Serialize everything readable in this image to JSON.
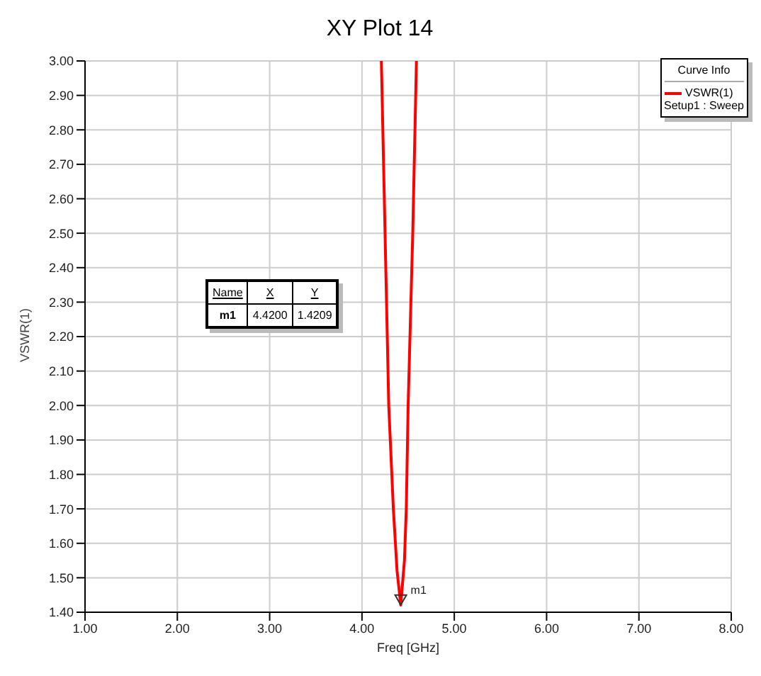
{
  "chart_data": {
    "type": "line",
    "title": "XY Plot 14",
    "xlabel": "Freq [GHz]",
    "ylabel": "VSWR(1)",
    "legend_title": "Curve Info",
    "x": [
      4.21,
      4.25,
      4.29,
      4.34,
      4.38,
      4.42,
      4.46,
      4.48,
      4.5,
      4.55,
      4.59
    ],
    "series": [
      {
        "name": "VSWR(1)",
        "color": "#ff0000",
        "values": [
          3.0,
          2.5,
          2.0,
          1.7,
          1.52,
          1.4209,
          1.55,
          1.7,
          2.0,
          2.5,
          3.0
        ]
      }
    ],
    "xlim": [
      1,
      8
    ],
    "ylim": [
      1.4,
      3.0
    ],
    "xticks": [
      {
        "value": 1,
        "label": "1.00"
      },
      {
        "value": 2,
        "label": "2.00"
      },
      {
        "value": 3,
        "label": "3.00"
      },
      {
        "value": 4,
        "label": "4.00"
      },
      {
        "value": 5,
        "label": "5.00"
      },
      {
        "value": 6,
        "label": "6.00"
      },
      {
        "value": 7,
        "label": "7.00"
      },
      {
        "value": 8,
        "label": "8.00"
      }
    ],
    "yticks": [
      {
        "value": 1.4,
        "label": "1.40"
      },
      {
        "value": 1.5,
        "label": "1.50"
      },
      {
        "value": 1.6,
        "label": "1.60"
      },
      {
        "value": 1.7,
        "label": "1.70"
      },
      {
        "value": 1.8,
        "label": "1.80"
      },
      {
        "value": 1.9,
        "label": "1.90"
      },
      {
        "value": 2.0,
        "label": "2.00"
      },
      {
        "value": 2.1,
        "label": "2.10"
      },
      {
        "value": 2.2,
        "label": "2.20"
      },
      {
        "value": 2.3,
        "label": "2.30"
      },
      {
        "value": 2.4,
        "label": "2.40"
      },
      {
        "value": 2.5,
        "label": "2.50"
      },
      {
        "value": 2.6,
        "label": "2.60"
      },
      {
        "value": 2.7,
        "label": "2.70"
      },
      {
        "value": 2.8,
        "label": "2.80"
      },
      {
        "value": 2.9,
        "label": "2.90"
      },
      {
        "value": 3.0,
        "label": "3.00"
      }
    ],
    "annotations": [
      {
        "text": "m1",
        "x": 4.42,
        "y": 1.4209
      },
      "Setup1 : Sweep",
      "Name",
      "X",
      "Y",
      "m1",
      "4.4200",
      "1.4209"
    ],
    "grid": true,
    "legend": "top right",
    "marker": "none",
    "line_style": "solid"
  }
}
